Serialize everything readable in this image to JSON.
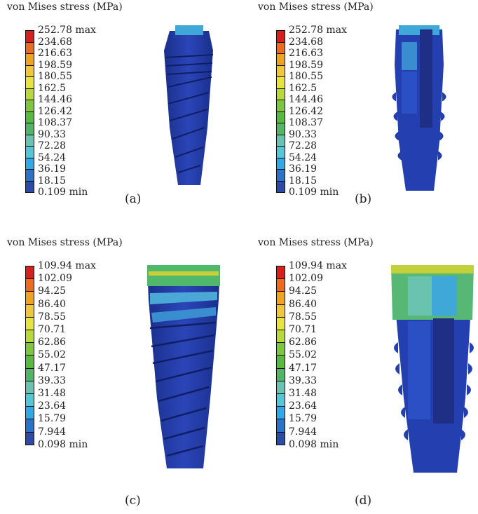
{
  "legend_title": "von Mises stress (MPa)",
  "colormap": [
    "#d42020",
    "#ef6a1c",
    "#f0a323",
    "#eec83a",
    "#e7e33f",
    "#b9d93a",
    "#7fc63d",
    "#5cb843",
    "#52b466",
    "#6ac3ae",
    "#53c7d3",
    "#2fa9e8",
    "#2c72c8",
    "#2e4aa8"
  ],
  "panels": [
    {
      "caption": "(a)",
      "ticks": [
        "252.78 max",
        "234.68",
        "216.63",
        "198.59",
        "180.55",
        "162.5",
        "144.46",
        "126.42",
        "108.37",
        "90.33",
        "72.28",
        "54.24",
        "36.19",
        "18.15",
        "0.109 min"
      ],
      "model_view": "full"
    },
    {
      "caption": "(b)",
      "ticks": [
        "252.78 max",
        "234.68",
        "216.63",
        "198.59",
        "180.55",
        "162.5",
        "144.46",
        "126.42",
        "108.37",
        "90.33",
        "72.28",
        "54.24",
        "36.19",
        "18.15",
        "0.109 min"
      ],
      "model_view": "section"
    },
    {
      "caption": "(c)",
      "ticks": [
        "109.94 max",
        "102.09",
        "94.25",
        "86.40",
        "78.55",
        "70.71",
        "62.86",
        "55.02",
        "47.17",
        "39.33",
        "31.48",
        "23.64",
        "15.79",
        "7.944",
        "0.098 min"
      ],
      "model_view": "full"
    },
    {
      "caption": "(d)",
      "ticks": [
        "109.94 max",
        "102.09",
        "94.25",
        "86.40",
        "78.55",
        "70.71",
        "62.86",
        "55.02",
        "47.17",
        "39.33",
        "31.48",
        "23.64",
        "15.79",
        "7.944",
        "0.098 min"
      ],
      "model_view": "section"
    }
  ]
}
